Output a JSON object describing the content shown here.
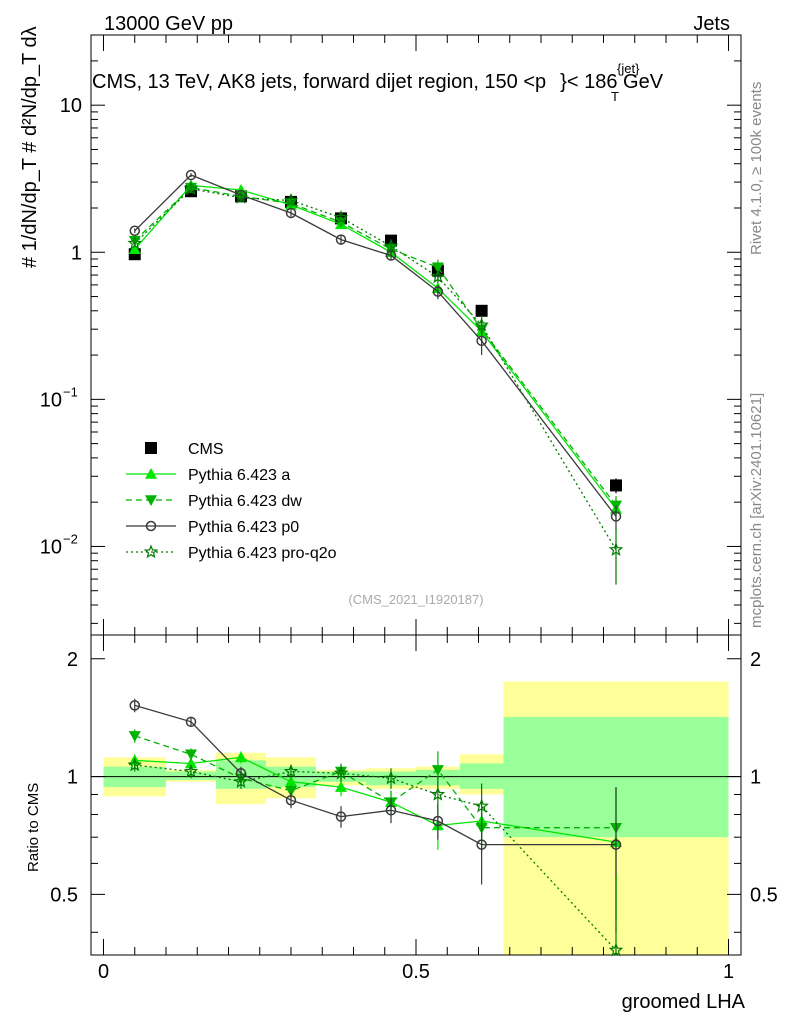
{
  "header": {
    "left": "13000 GeV pp",
    "right": "Jets",
    "subtitle_pre": "CMS, 13 TeV, AK8 jets, forward dijet region, 150 <",
    "subtitle_p": "p",
    "subtitle_sup": "{jet}",
    "subtitle_sub": "T",
    "subtitle_post": "}< 186 GeV",
    "watermark": "(CMS_2021_I1920187)",
    "side_top": "Rivet 4.1.0, ≥ 100k events",
    "side_bottom": "mcplots.cern.ch [arXiv:2401.10621]"
  },
  "axes": {
    "ylabel_top": "# 1/dN/dp_T # d²N/dp_T dλ",
    "ylabel_ratio": "Ratio to CMS",
    "xlabel": "groomed LHA"
  },
  "legend": [
    {
      "label": "CMS"
    },
    {
      "label": "Pythia 6.423 a"
    },
    {
      "label": "Pythia 6.423 dw"
    },
    {
      "label": "Pythia 6.423 p0"
    },
    {
      "label": "Pythia 6.423 pro-q2o"
    }
  ],
  "chart_data": [
    {
      "type": "line",
      "panel": "main",
      "xlim": [
        -0.02,
        1.02
      ],
      "ylim": [
        0.0025,
        30
      ],
      "yscale": "log",
      "y_ticks": [
        {
          "value": 0.01,
          "label": "10",
          "exp": "−2"
        },
        {
          "value": 0.1,
          "label": "10",
          "exp": "−1"
        },
        {
          "value": 1,
          "label": "1",
          "exp": ""
        },
        {
          "value": 10,
          "label": "10",
          "exp": ""
        }
      ],
      "bins": [
        [
          0,
          0.1
        ],
        [
          0.1,
          0.18
        ],
        [
          0.18,
          0.26
        ],
        [
          0.26,
          0.34
        ],
        [
          0.34,
          0.42
        ],
        [
          0.42,
          0.5
        ],
        [
          0.5,
          0.57
        ],
        [
          0.57,
          0.64
        ],
        [
          0.64,
          1.0
        ]
      ],
      "x": [
        0.05,
        0.14,
        0.22,
        0.3,
        0.38,
        0.46,
        0.535,
        0.605,
        0.82
      ],
      "series": [
        {
          "name": "CMS",
          "values": [
            0.97,
            2.6,
            2.4,
            2.2,
            1.7,
            1.2,
            0.75,
            0.4,
            0.026
          ],
          "errors": [
            0.05,
            0.1,
            0.1,
            0.1,
            0.08,
            0.06,
            0.06,
            0.03,
            0.003
          ]
        },
        {
          "name": "Pythia 6.423 a",
          "values": [
            1.05,
            2.85,
            2.65,
            2.1,
            1.55,
            1.0,
            0.57,
            0.29,
            0.018
          ],
          "errors": [
            0.05,
            0.1,
            0.1,
            0.1,
            0.08,
            0.06,
            0.08,
            0.05,
            0.003
          ]
        },
        {
          "name": "Pythia 6.423 dw",
          "values": [
            1.2,
            2.75,
            2.4,
            2.15,
            1.6,
            1.05,
            0.79,
            0.3,
            0.019
          ],
          "errors": [
            0.05,
            0.1,
            0.1,
            0.1,
            0.08,
            0.06,
            0.1,
            0.05,
            0.003
          ]
        },
        {
          "name": "Pythia 6.423 p0",
          "values": [
            1.4,
            3.35,
            2.45,
            1.85,
            1.22,
            0.95,
            0.54,
            0.25,
            0.016
          ],
          "errors": [
            0.05,
            0.1,
            0.1,
            0.1,
            0.08,
            0.06,
            0.06,
            0.05,
            0.003
          ]
        },
        {
          "name": "Pythia 6.423 pro-q2o",
          "values": [
            1.15,
            2.7,
            2.35,
            2.25,
            1.72,
            1.1,
            0.68,
            0.32,
            0.0095
          ],
          "errors": [
            0.05,
            0.1,
            0.1,
            0.1,
            0.08,
            0.06,
            0.06,
            0.05,
            0.004
          ]
        }
      ]
    },
    {
      "type": "line",
      "panel": "ratio",
      "xlim": [
        -0.02,
        1.02
      ],
      "ylim": [
        0.35,
        2.3
      ],
      "yscale": "log",
      "y_ticks": [
        {
          "value": 0.5,
          "label": "0.5"
        },
        {
          "value": 1,
          "label": "1"
        },
        {
          "value": 2,
          "label": "2"
        }
      ],
      "x_ticks": [
        {
          "value": 0,
          "label": "0"
        },
        {
          "value": 0.5,
          "label": "0.5"
        },
        {
          "value": 1,
          "label": "1"
        }
      ],
      "bands": [
        {
          "x0": 0.0,
          "x1": 0.1,
          "inner": [
            0.94,
            1.06
          ],
          "outer": [
            0.89,
            1.12
          ]
        },
        {
          "x0": 0.1,
          "x1": 0.18,
          "inner": [
            0.98,
            1.03
          ],
          "outer": [
            0.97,
            1.04
          ]
        },
        {
          "x0": 0.18,
          "x1": 0.26,
          "inner": [
            0.93,
            1.1
          ],
          "outer": [
            0.85,
            1.15
          ]
        },
        {
          "x0": 0.26,
          "x1": 0.34,
          "inner": [
            0.94,
            1.06
          ],
          "outer": [
            0.88,
            1.12
          ]
        },
        {
          "x0": 0.34,
          "x1": 0.42,
          "inner": [
            0.97,
            1.03
          ],
          "outer": [
            0.95,
            1.04
          ]
        },
        {
          "x0": 0.42,
          "x1": 0.5,
          "inner": [
            0.95,
            1.03
          ],
          "outer": [
            0.93,
            1.05
          ]
        },
        {
          "x0": 0.5,
          "x1": 0.57,
          "inner": [
            0.95,
            1.04
          ],
          "outer": [
            0.93,
            1.06
          ]
        },
        {
          "x0": 0.57,
          "x1": 0.64,
          "inner": [
            0.93,
            1.08
          ],
          "outer": [
            0.9,
            1.14
          ]
        },
        {
          "x0": 0.64,
          "x1": 1.0,
          "inner": [
            0.7,
            1.42
          ],
          "outer": [
            0.3,
            1.75
          ]
        }
      ],
      "series": [
        {
          "name": "Pythia 6.423 a",
          "values": [
            1.1,
            1.08,
            1.12,
            0.97,
            0.94,
            0.86,
            0.75,
            0.77,
            0.68
          ],
          "errors": [
            0.04,
            0.04,
            0.04,
            0.04,
            0.05,
            0.06,
            0.1,
            0.1,
            0.25
          ]
        },
        {
          "name": "Pythia 6.423 dw",
          "values": [
            1.27,
            1.14,
            0.99,
            0.92,
            1.03,
            0.86,
            1.04,
            0.74,
            0.74
          ],
          "errors": [
            0.05,
            0.04,
            0.04,
            0.04,
            0.05,
            0.06,
            0.12,
            0.1,
            0.2
          ]
        },
        {
          "name": "Pythia 6.423 p0",
          "values": [
            1.52,
            1.38,
            1.02,
            0.87,
            0.79,
            0.82,
            0.77,
            0.67,
            0.67
          ],
          "errors": [
            0.06,
            0.04,
            0.04,
            0.04,
            0.05,
            0.06,
            0.08,
            0.14,
            0.27
          ]
        },
        {
          "name": "Pythia 6.423 pro-q2o",
          "values": [
            1.07,
            1.03,
            0.97,
            1.03,
            1.02,
            0.99,
            0.9,
            0.84,
            0.36
          ],
          "errors": [
            0.04,
            0.04,
            0.04,
            0.04,
            0.05,
            0.06,
            0.1,
            0.12,
            0.2
          ]
        }
      ]
    }
  ],
  "colors": {
    "cms": "#000000",
    "a": "#00e600",
    "dw": "#00b300",
    "p0": "#3a3a3a",
    "proq2o": "#007a00",
    "band_inner": "#99ff99",
    "band_outer": "#ffff99"
  }
}
